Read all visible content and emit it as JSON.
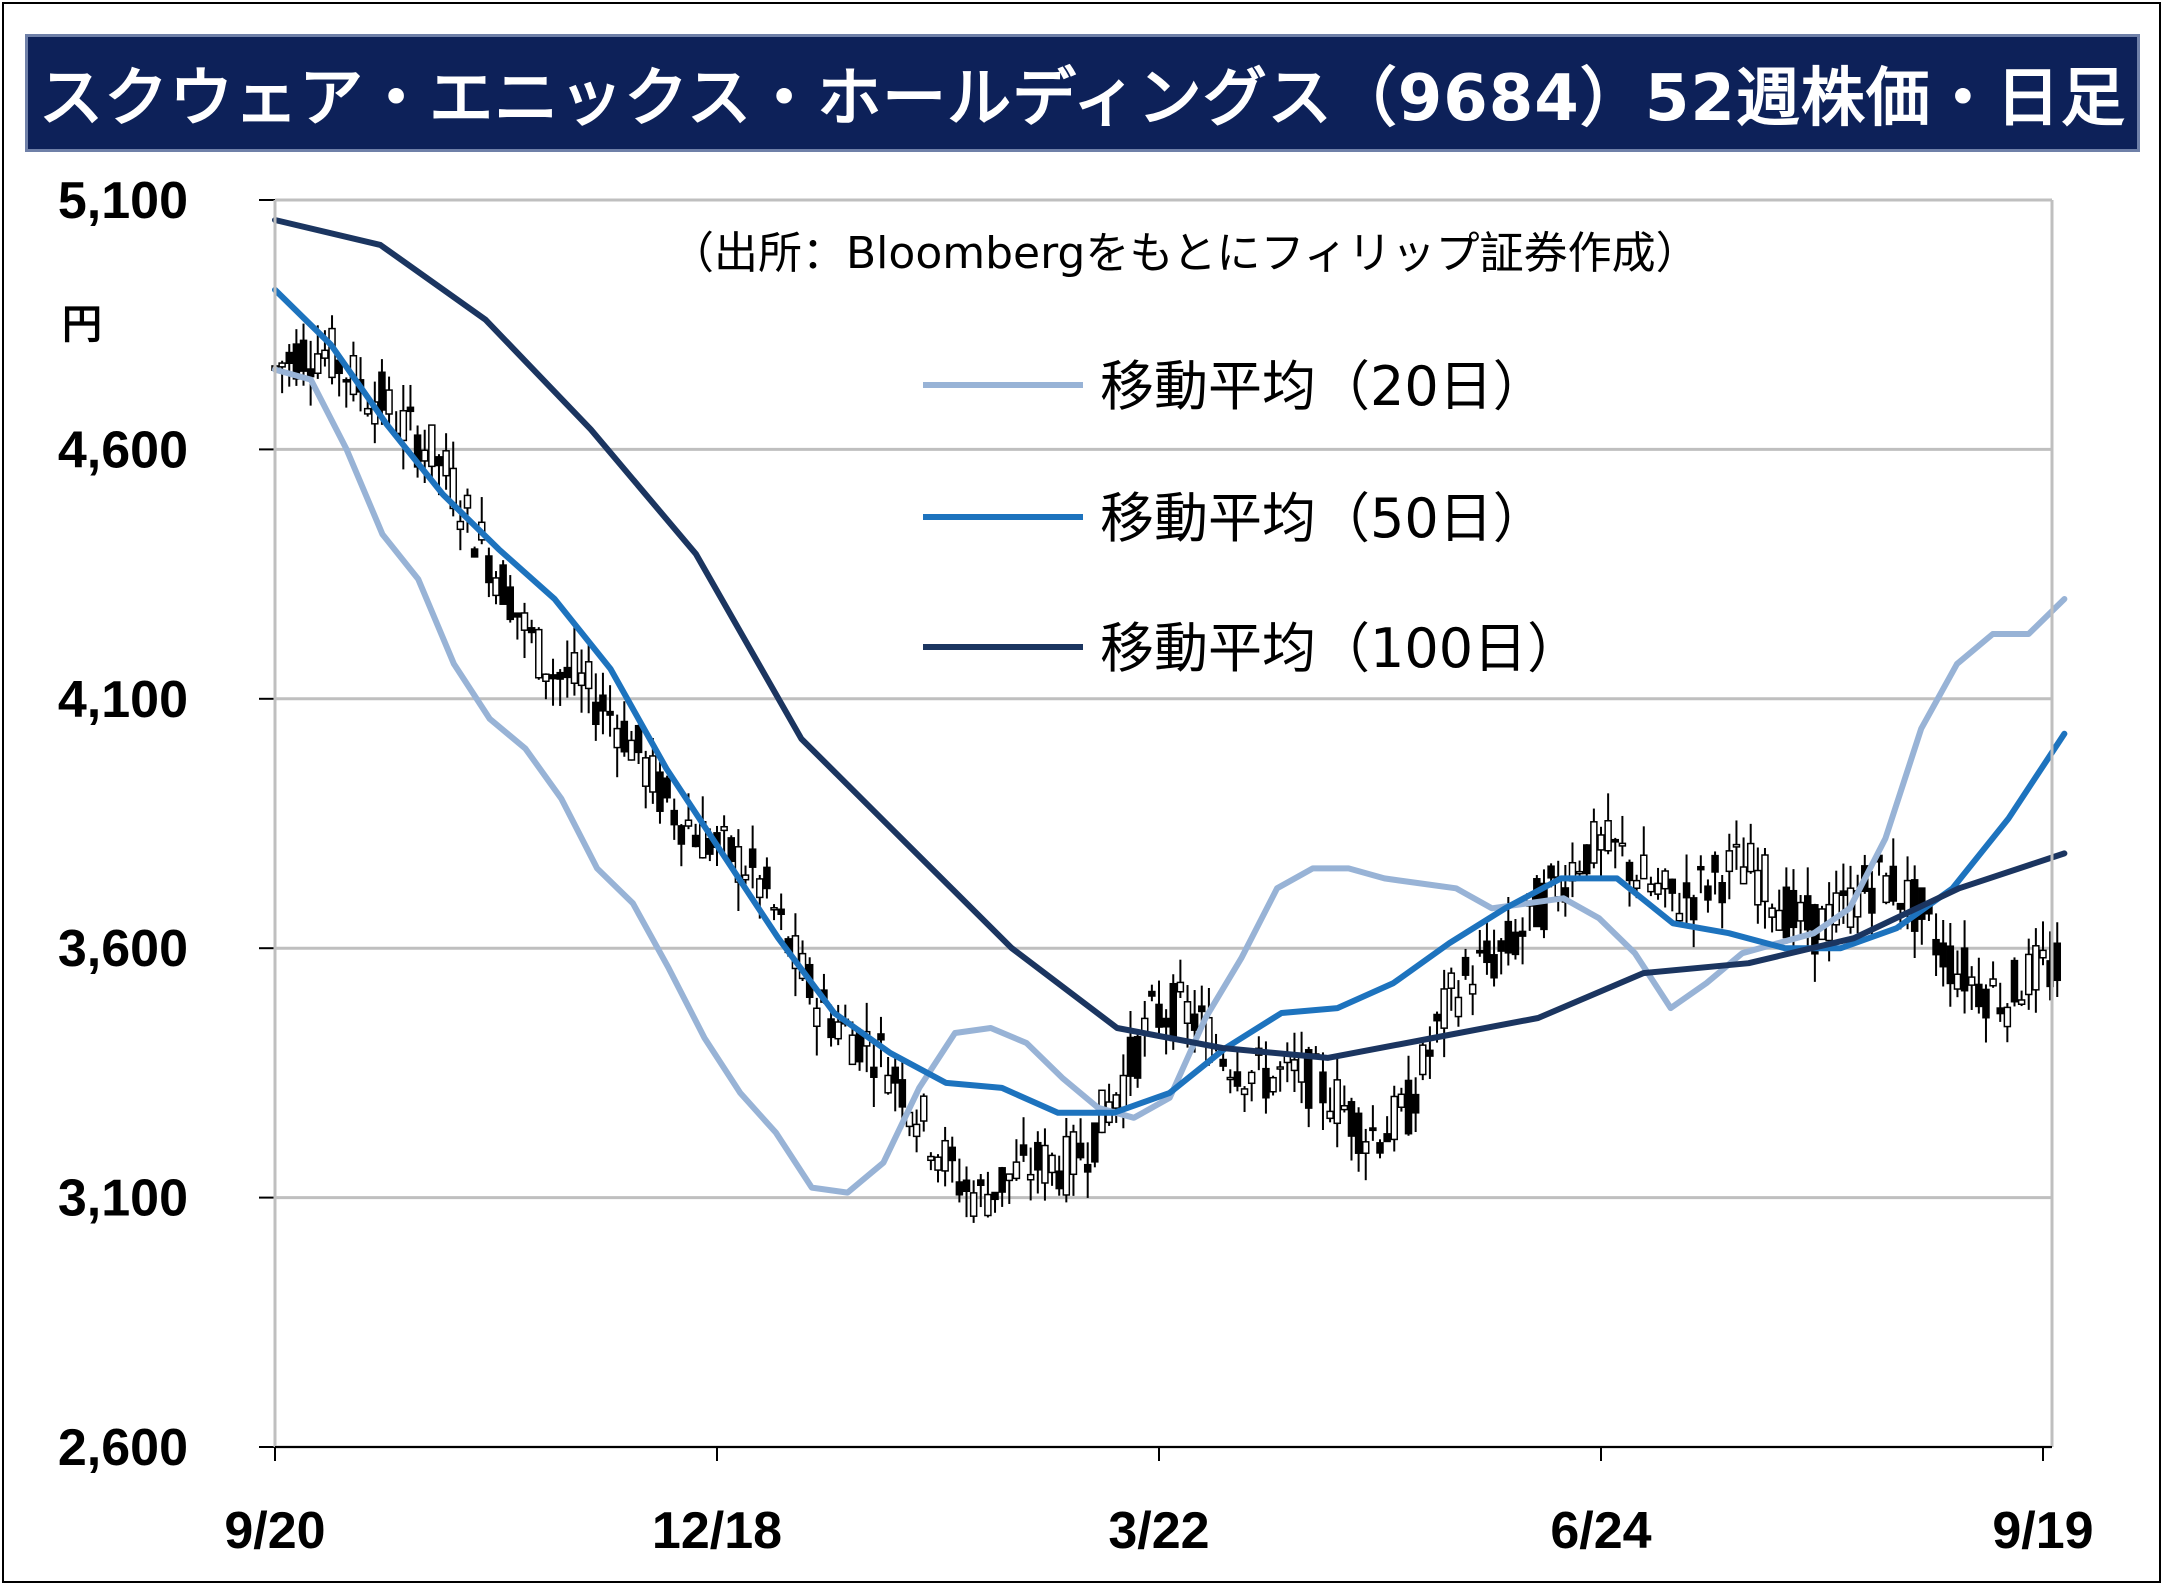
{
  "chart_data": {
    "type": "candlestick",
    "title": "スクウェア・エニックス・ホールディングス（9684）52週株価・日足",
    "source_note": "（出所：Bloombergをもとにフィリップ証券作成）",
    "ylabel": "円",
    "ylim": [
      2600,
      5100
    ],
    "yticks": [
      "5,100",
      "4,600",
      "4,100",
      "3,600",
      "3,100",
      "2,600"
    ],
    "yticks_values": [
      5100,
      4600,
      4100,
      3600,
      3100,
      2600
    ],
    "xticks": [
      "9/20",
      "12/18",
      "3/22",
      "6/24",
      "9/19"
    ],
    "xticks_index": [
      0,
      62,
      124,
      186,
      248
    ],
    "n_days": 251,
    "grid": true,
    "legend_position": "top-right",
    "colors": {
      "ma20": "#98b3d6",
      "ma50": "#1d73be",
      "ma100": "#1b3560",
      "candle": "#000000",
      "grid": "#bfbfbf"
    },
    "series": [
      {
        "name": "移動平均（20日）",
        "key": "ma20",
        "points": [
          [
            0,
            4760
          ],
          [
            6,
            4740
          ],
          [
            12,
            4600
          ],
          [
            18,
            4430
          ],
          [
            24,
            4340
          ],
          [
            30,
            4170
          ],
          [
            36,
            4060
          ],
          [
            42,
            4000
          ],
          [
            48,
            3900
          ],
          [
            54,
            3760
          ],
          [
            60,
            3690
          ],
          [
            66,
            3560
          ],
          [
            72,
            3420
          ],
          [
            78,
            3310
          ],
          [
            84,
            3230
          ],
          [
            90,
            3120
          ],
          [
            96,
            3110
          ],
          [
            102,
            3170
          ],
          [
            108,
            3320
          ],
          [
            114,
            3430
          ],
          [
            120,
            3440
          ],
          [
            126,
            3410
          ],
          [
            132,
            3340
          ],
          [
            138,
            3280
          ],
          [
            144,
            3260
          ],
          [
            150,
            3300
          ],
          [
            156,
            3460
          ],
          [
            162,
            3580
          ],
          [
            168,
            3720
          ],
          [
            174,
            3760
          ],
          [
            180,
            3760
          ],
          [
            186,
            3740
          ],
          [
            192,
            3730
          ],
          [
            198,
            3720
          ],
          [
            204,
            3680
          ],
          [
            210,
            3690
          ],
          [
            216,
            3700
          ],
          [
            222,
            3660
          ],
          [
            228,
            3590
          ],
          [
            234,
            3480
          ],
          [
            240,
            3530
          ],
          [
            246,
            3590
          ],
          [
            252,
            3610
          ],
          [
            258,
            3630
          ],
          [
            264,
            3680
          ],
          [
            270,
            3820
          ],
          [
            276,
            4040
          ],
          [
            282,
            4170
          ],
          [
            288,
            4230
          ],
          [
            294,
            4230
          ],
          [
            300,
            4300
          ]
        ]
      },
      {
        "name": "移動平均（50日）",
        "key": "ma50",
        "points": [
          [
            0,
            4920
          ],
          [
            10,
            4810
          ],
          [
            20,
            4650
          ],
          [
            30,
            4510
          ],
          [
            40,
            4400
          ],
          [
            50,
            4300
          ],
          [
            60,
            4160
          ],
          [
            70,
            3960
          ],
          [
            80,
            3790
          ],
          [
            90,
            3620
          ],
          [
            100,
            3470
          ],
          [
            110,
            3390
          ],
          [
            120,
            3330
          ],
          [
            130,
            3320
          ],
          [
            140,
            3270
          ],
          [
            150,
            3270
          ],
          [
            160,
            3310
          ],
          [
            170,
            3400
          ],
          [
            180,
            3470
          ],
          [
            190,
            3480
          ],
          [
            200,
            3530
          ],
          [
            210,
            3610
          ],
          [
            220,
            3680
          ],
          [
            230,
            3740
          ],
          [
            240,
            3740
          ],
          [
            250,
            3650
          ],
          [
            260,
            3630
          ],
          [
            270,
            3600
          ],
          [
            280,
            3600
          ],
          [
            290,
            3640
          ],
          [
            300,
            3720
          ],
          [
            310,
            3860
          ],
          [
            320,
            4030
          ]
        ]
      },
      {
        "name": "移動平均（100日）",
        "key": "ma100",
        "points": [
          [
            0,
            5060
          ],
          [
            20,
            5010
          ],
          [
            40,
            4860
          ],
          [
            60,
            4640
          ],
          [
            80,
            4390
          ],
          [
            100,
            4020
          ],
          [
            120,
            3810
          ],
          [
            140,
            3600
          ],
          [
            160,
            3440
          ],
          [
            180,
            3400
          ],
          [
            200,
            3380
          ],
          [
            220,
            3420
          ],
          [
            240,
            3460
          ],
          [
            260,
            3550
          ],
          [
            280,
            3570
          ],
          [
            300,
            3620
          ],
          [
            320,
            3720
          ],
          [
            340,
            3790
          ]
        ]
      }
    ]
  }
}
